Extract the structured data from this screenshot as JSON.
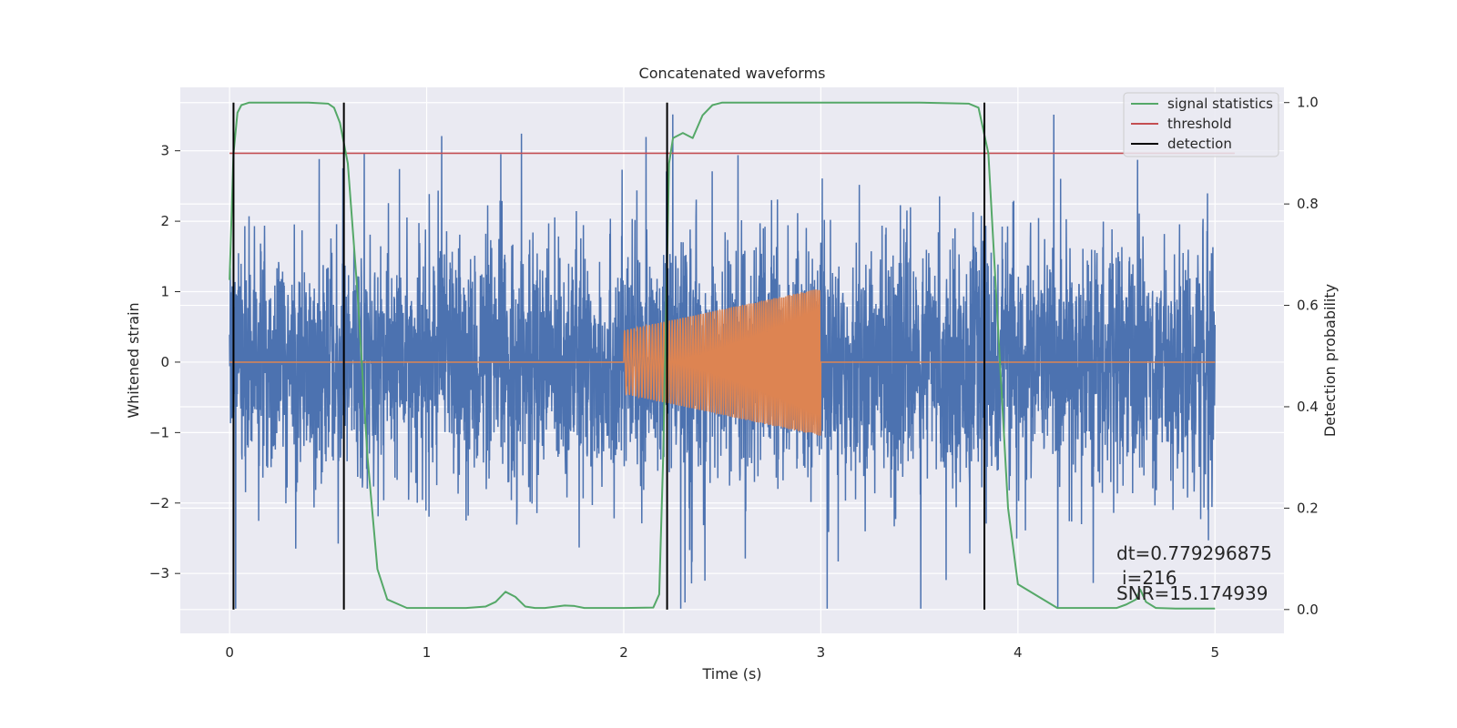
{
  "chart_data": {
    "type": "line",
    "title": "Concatenated waveforms",
    "xlabel": "Time (s)",
    "ylabel": "Whitened strain",
    "ylabel_right": "Detection probability",
    "xlim": [
      -0.25,
      5.35
    ],
    "ylim": [
      -3.85,
      3.9
    ],
    "ylim_right": [
      -0.047,
      1.03
    ],
    "x_ticks": [
      0,
      1,
      2,
      3,
      4,
      5
    ],
    "y_ticks": [
      -3,
      -2,
      -1,
      0,
      1,
      2,
      3
    ],
    "y_ticks_right": [
      0.0,
      0.2,
      0.4,
      0.6,
      0.8,
      1.0
    ],
    "x_tick_labels": [
      "0",
      "1",
      "2",
      "3",
      "4",
      "5"
    ],
    "y_tick_labels": [
      "−3",
      "−2",
      "−1",
      "0",
      "1",
      "2",
      "3"
    ],
    "y_tick_labels_right": [
      "0.0",
      "0.2",
      "0.4",
      "0.6",
      "0.8",
      "1.0"
    ],
    "grid": true,
    "legend_position": "top-right",
    "colors": {
      "strain": "#4c72b0",
      "injection": "#dd8452",
      "signal_statistics": "#55a868",
      "threshold": "#c44e52",
      "detection": "#000000",
      "plot_bg": "#eaeaf2",
      "grid": "#ffffff"
    },
    "series": [
      {
        "name": "",
        "axis": "left",
        "kind": "noise",
        "x_range": [
          0,
          5
        ],
        "y_range_approx": [
          -3.5,
          3.6
        ]
      },
      {
        "name": "",
        "axis": "left",
        "kind": "chirp",
        "x_range": [
          2,
          3
        ],
        "amplitude_start": 0.45,
        "amplitude_end": 1.05
      },
      {
        "name": "signal statistics",
        "axis": "right",
        "x": [
          0.0,
          0.02,
          0.04,
          0.06,
          0.1,
          0.2,
          0.3,
          0.4,
          0.5,
          0.53,
          0.56,
          0.6,
          0.65,
          0.7,
          0.75,
          0.8,
          0.9,
          1.0,
          1.2,
          1.3,
          1.35,
          1.4,
          1.45,
          1.5,
          1.55,
          1.6,
          1.7,
          1.75,
          1.8,
          2.0,
          2.15,
          2.18,
          2.2,
          2.23,
          2.25,
          2.3,
          2.35,
          2.4,
          2.45,
          2.5,
          3.0,
          3.5,
          3.75,
          3.8,
          3.85,
          3.9,
          3.95,
          4.0,
          4.2,
          4.4,
          4.5,
          4.55,
          4.6,
          4.62,
          4.65,
          4.7,
          4.8,
          5.0
        ],
        "y": [
          0.65,
          0.9,
          0.98,
          0.995,
          1.0,
          1.0,
          1.0,
          1.0,
          0.998,
          0.99,
          0.96,
          0.88,
          0.62,
          0.3,
          0.08,
          0.02,
          0.003,
          0.003,
          0.003,
          0.006,
          0.015,
          0.035,
          0.025,
          0.006,
          0.003,
          0.003,
          0.008,
          0.007,
          0.003,
          0.003,
          0.004,
          0.03,
          0.3,
          0.88,
          0.93,
          0.94,
          0.93,
          0.975,
          0.995,
          1.0,
          1.0,
          1.0,
          0.998,
          0.99,
          0.9,
          0.55,
          0.2,
          0.05,
          0.003,
          0.003,
          0.003,
          0.01,
          0.02,
          0.04,
          0.015,
          0.003,
          0.002,
          0.002
        ]
      },
      {
        "name": "threshold",
        "axis": "right",
        "x": [
          0.0,
          5.1
        ],
        "y": [
          0.9,
          0.9
        ]
      },
      {
        "name": "detection",
        "axis": "right",
        "kind": "vlines",
        "x": [
          0.02,
          0.58,
          2.22,
          3.83
        ],
        "y_range": [
          0.0,
          1.0
        ]
      }
    ],
    "annotations": [
      "dt=0.779296875",
      "i=216",
      "SNR=15.174939"
    ]
  }
}
